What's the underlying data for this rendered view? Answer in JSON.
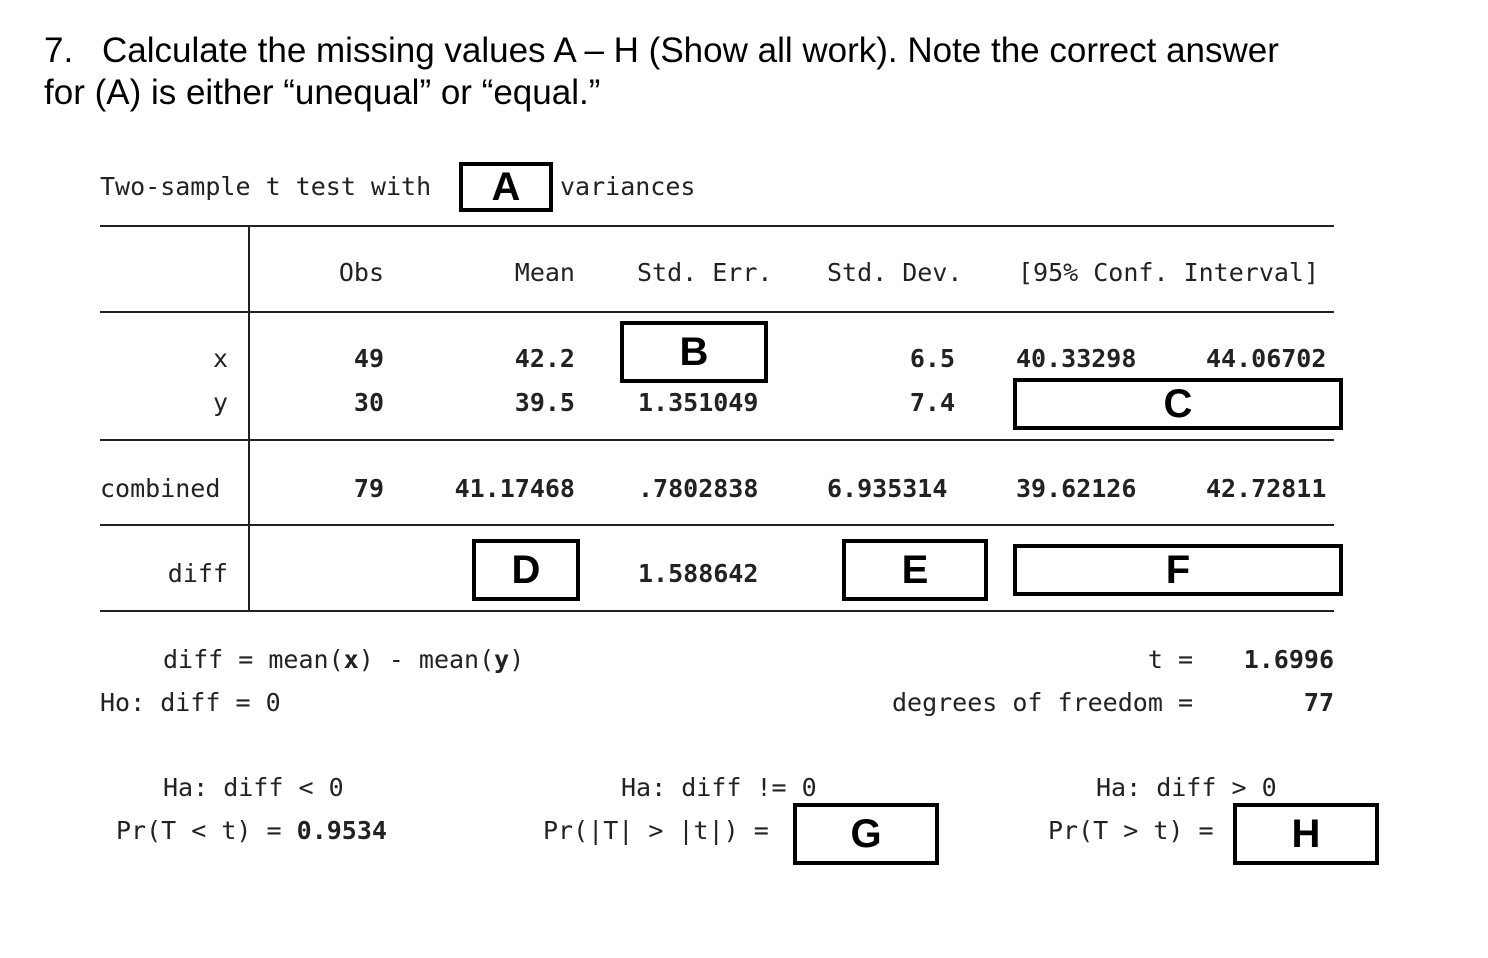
{
  "question": {
    "number": "7.",
    "line1": "Calculate the missing values A – H (Show all work). Note the correct answer",
    "line2": "for (A) is either “unequal” or “equal.”"
  },
  "output": {
    "title_prefix": "Two-sample t test with",
    "title_suffix": "variances",
    "headers": [
      "Obs",
      "Mean",
      "Std. Err.",
      "Std. Dev.",
      "[95% Conf. Interval]"
    ],
    "rows": {
      "x": {
        "label": "x",
        "obs": "49",
        "mean": "42.2",
        "sd": "6.5",
        "ci_low": "40.33298",
        "ci_high": "44.06702"
      },
      "y": {
        "label": "y",
        "obs": "30",
        "mean": "39.5",
        "se": "1.351049",
        "sd": "7.4"
      },
      "combined": {
        "label": "combined",
        "obs": "79",
        "mean": "41.17468",
        "se": ".7802838",
        "sd": "6.935314",
        "ci_low": "39.62126",
        "ci_high": "42.72811"
      },
      "diff": {
        "label": "diff",
        "se": "1.588642"
      }
    },
    "diff_def_prefix": "diff = mean(",
    "diff_def_x": "x",
    "diff_def_mid": ") - mean(",
    "diff_def_y": "y",
    "diff_def_suffix": ")",
    "t_label": "t =",
    "t_value": "1.6996",
    "ho": "Ho: diff = 0",
    "df_label": "degrees of freedom =",
    "df_value": "77",
    "ha_left": "Ha: diff < 0",
    "ha_mid": "Ha: diff != 0",
    "ha_right": "Ha: diff > 0",
    "p_left_label": "Pr(T < t) =",
    "p_left_value": "0.9534",
    "p_mid_label": "Pr(|T| > |t|) =",
    "p_right_label": "Pr(T > t) ="
  },
  "blanks": {
    "A": "A",
    "B": "B",
    "C": "C",
    "D": "D",
    "E": "E",
    "F": "F",
    "G": "G",
    "H": "H"
  }
}
